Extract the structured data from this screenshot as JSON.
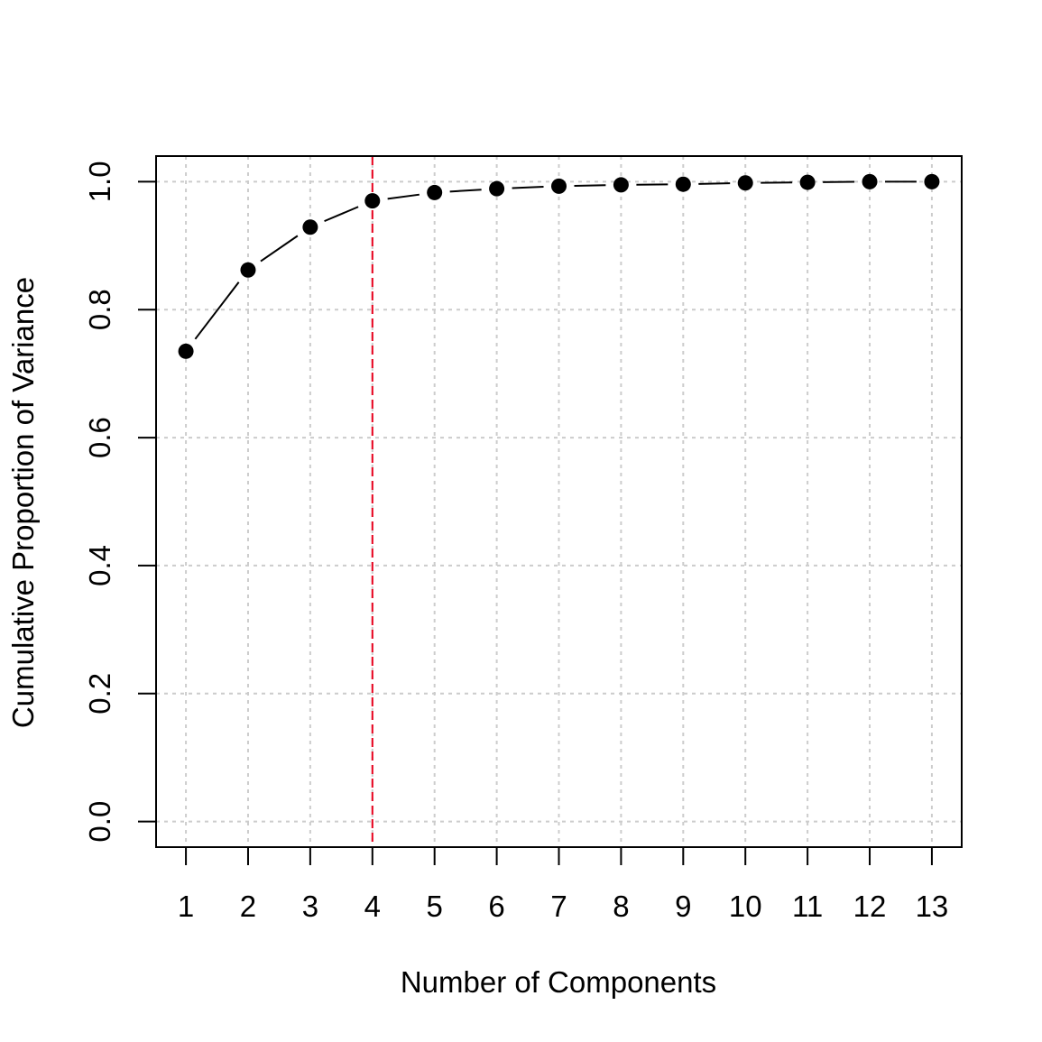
{
  "chart_data": {
    "type": "line",
    "title": "",
    "xlabel": "Number of Components",
    "ylabel": "Cumulative Proportion of Variance",
    "x": [
      1,
      2,
      3,
      4,
      5,
      6,
      7,
      8,
      9,
      10,
      11,
      12,
      13
    ],
    "y": [
      0.735,
      0.862,
      0.929,
      0.97,
      0.983,
      0.989,
      0.993,
      0.995,
      0.996,
      0.998,
      0.999,
      1.0,
      1.0
    ],
    "x_ticks": [
      "1",
      "2",
      "3",
      "4",
      "5",
      "6",
      "7",
      "8",
      "9",
      "10",
      "11",
      "12",
      "13"
    ],
    "y_ticks": [
      "0.0",
      "0.2",
      "0.4",
      "0.6",
      "0.8",
      "1.0"
    ],
    "xlim": [
      0.52,
      13.48
    ],
    "ylim": [
      -0.04,
      1.04
    ],
    "grid": true,
    "line_style": "solid",
    "marker": "filled-circle",
    "reference_line": {
      "x": 4,
      "color": "#e8001c",
      "style": "dashed"
    },
    "colors": {
      "series": "#000000",
      "grid": "#cccccc",
      "reference": "#e8001c"
    }
  }
}
